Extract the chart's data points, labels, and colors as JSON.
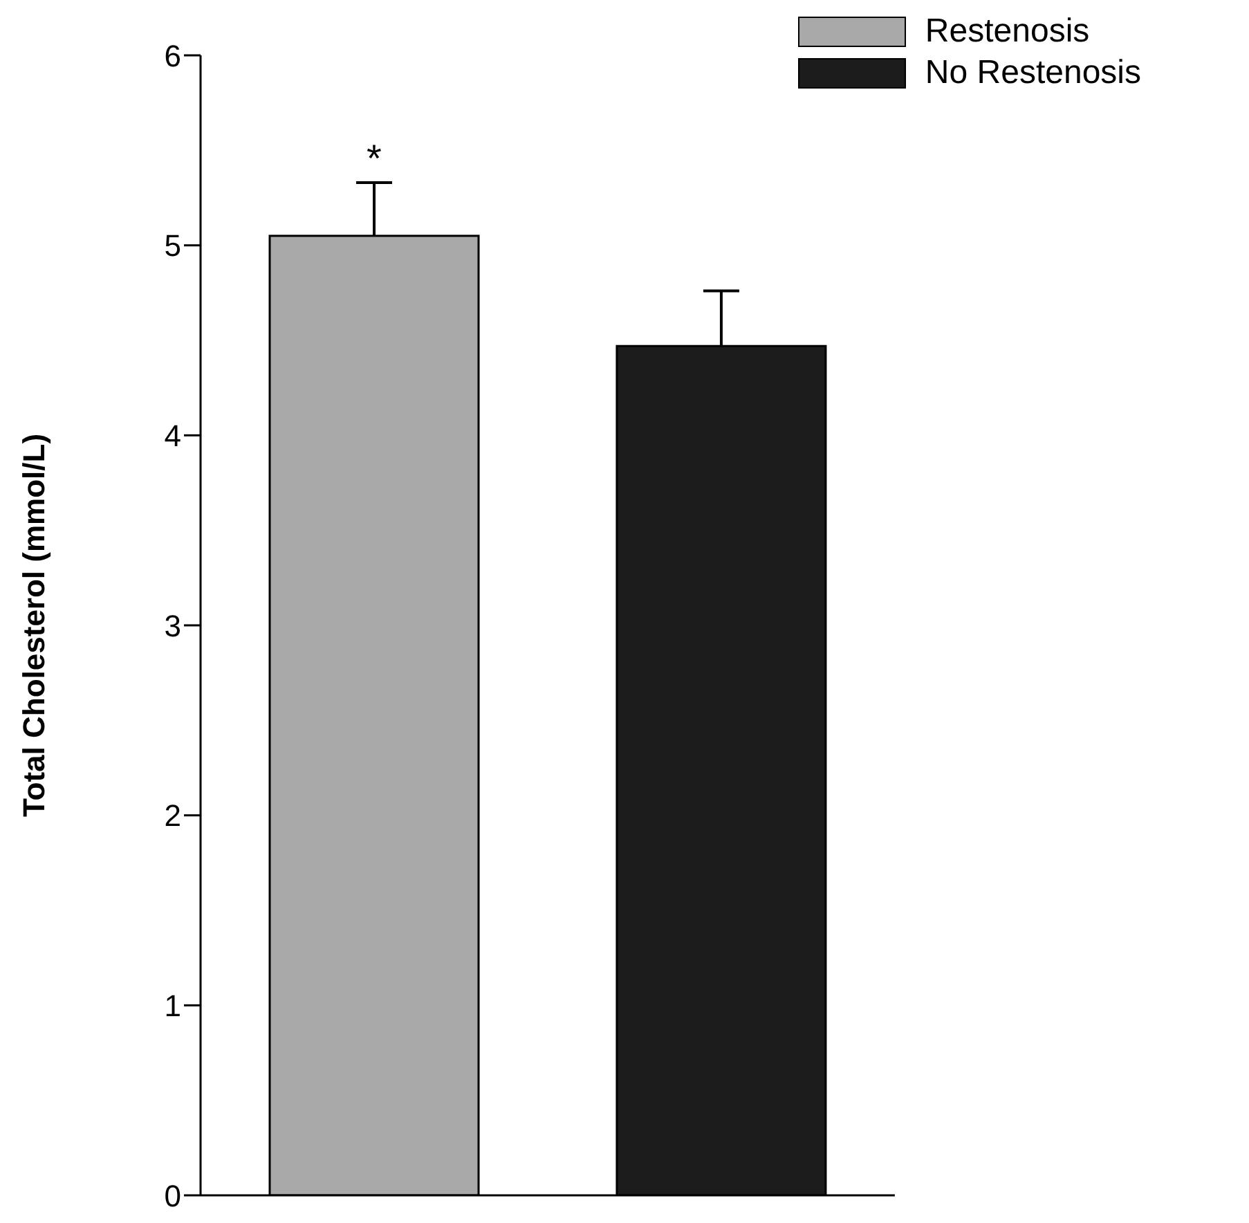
{
  "chart_data": {
    "type": "bar",
    "ylabel": "Total Cholesterol (mmol/L)",
    "categories": [
      null,
      null
    ],
    "series": [
      {
        "name": "Restenosis",
        "color": "#a8a8a8",
        "values": [
          5.05,
          null
        ],
        "errors": [
          0.28,
          null
        ]
      },
      {
        "name": "No Restenosis",
        "color": "#1c1c1c",
        "values": [
          null,
          4.47
        ],
        "errors": [
          null,
          0.29
        ]
      }
    ],
    "ylim": [
      0,
      6
    ],
    "yticks": [
      0,
      1,
      2,
      3,
      4,
      5,
      6
    ],
    "legend": "top right",
    "grid": false,
    "annotations": [
      "*"
    ]
  }
}
